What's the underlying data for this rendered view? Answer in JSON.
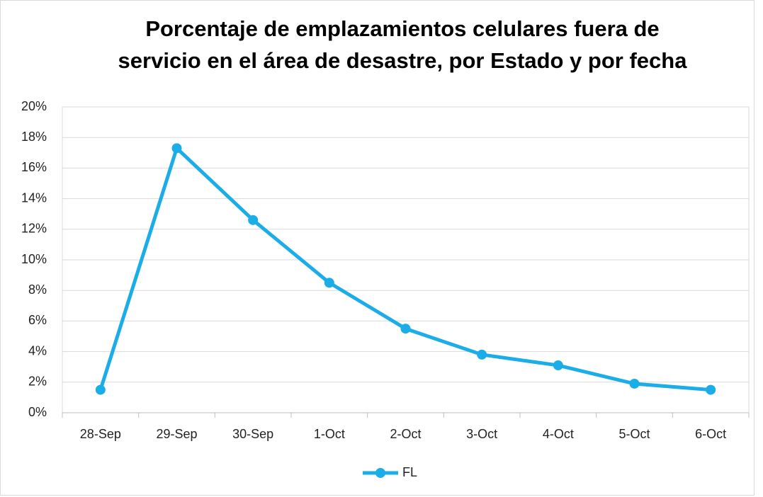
{
  "chart_data": {
    "type": "line",
    "title": [
      "Porcentaje de emplazamientos celulares fuera de",
      "servicio en el área de desastre, por Estado y por fecha"
    ],
    "categories": [
      "28-Sep",
      "29-Sep",
      "30-Sep",
      "1-Oct",
      "2-Oct",
      "3-Oct",
      "4-Oct",
      "5-Oct",
      "6-Oct"
    ],
    "series": [
      {
        "name": "FL",
        "color": "#1AADE8",
        "values": [
          1.5,
          17.3,
          12.6,
          8.5,
          5.5,
          3.8,
          3.1,
          1.9,
          1.5
        ]
      }
    ],
    "ylim": [
      0,
      20
    ],
    "yticks": [
      {
        "value": 0,
        "label": "0%"
      },
      {
        "value": 2,
        "label": "2%"
      },
      {
        "value": 4,
        "label": "4%"
      },
      {
        "value": 6,
        "label": "6%"
      },
      {
        "value": 8,
        "label": "8%"
      },
      {
        "value": 10,
        "label": "10%"
      },
      {
        "value": 12,
        "label": "12%"
      },
      {
        "value": 14,
        "label": "14%"
      },
      {
        "value": 16,
        "label": "16%"
      },
      {
        "value": 18,
        "label": "18%"
      },
      {
        "value": 20,
        "label": "20%"
      }
    ],
    "grid": true,
    "legend": "bottom"
  }
}
